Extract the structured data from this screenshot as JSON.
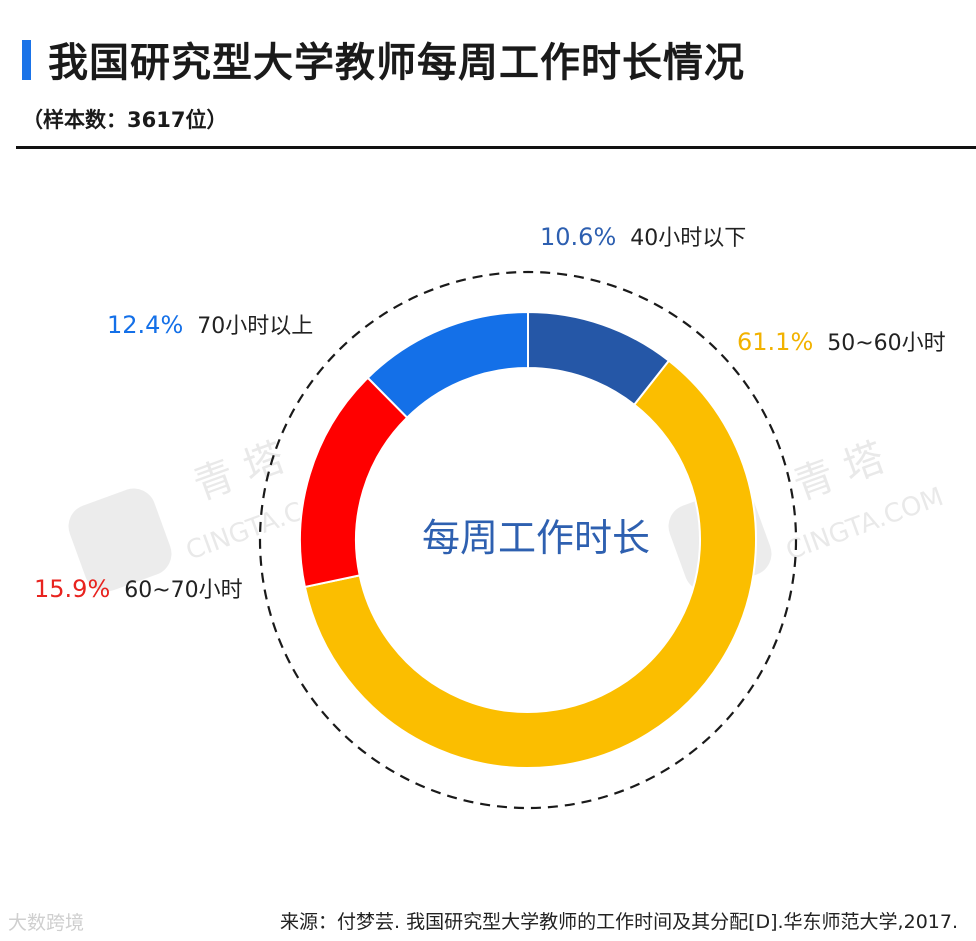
{
  "header": {
    "title": "我国研究型大学教师每周工作时长情况",
    "subtitle": "（样本数：3617位）"
  },
  "colors": {
    "accent": "#1a73e8",
    "dark_blue": "#2557a7",
    "yellow": "#fbbe00",
    "red": "#ff0000",
    "blue": "#1470e8"
  },
  "chart_data": {
    "type": "pie",
    "title": "",
    "center_label": "每周工作时长",
    "slices": [
      {
        "label": "40小时以下",
        "value": 10.6,
        "value_label": "10.6%",
        "color": "#2557a7",
        "label_color": "#2d5fb0"
      },
      {
        "label": "50~60小时",
        "value": 61.1,
        "value_label": "61.1%",
        "color": "#fbbe00",
        "label_color": "#f2b200"
      },
      {
        "label": "60~70小时",
        "value": 15.9,
        "value_label": "15.9%",
        "color": "#ff0000",
        "label_color": "#e8231f"
      },
      {
        "label": "70小时以上",
        "value": 12.4,
        "value_label": "12.4%",
        "color": "#1470e8",
        "label_color": "#1470e8"
      }
    ]
  },
  "watermarks": {
    "brand_cn": "青 塔",
    "brand_en": "CINGTA.COM",
    "corner": "大数跨境"
  },
  "footer": {
    "source": "来源：付梦芸. 我国研究型大学教师的工作时间及其分配[D].华东师范大学,2017."
  }
}
